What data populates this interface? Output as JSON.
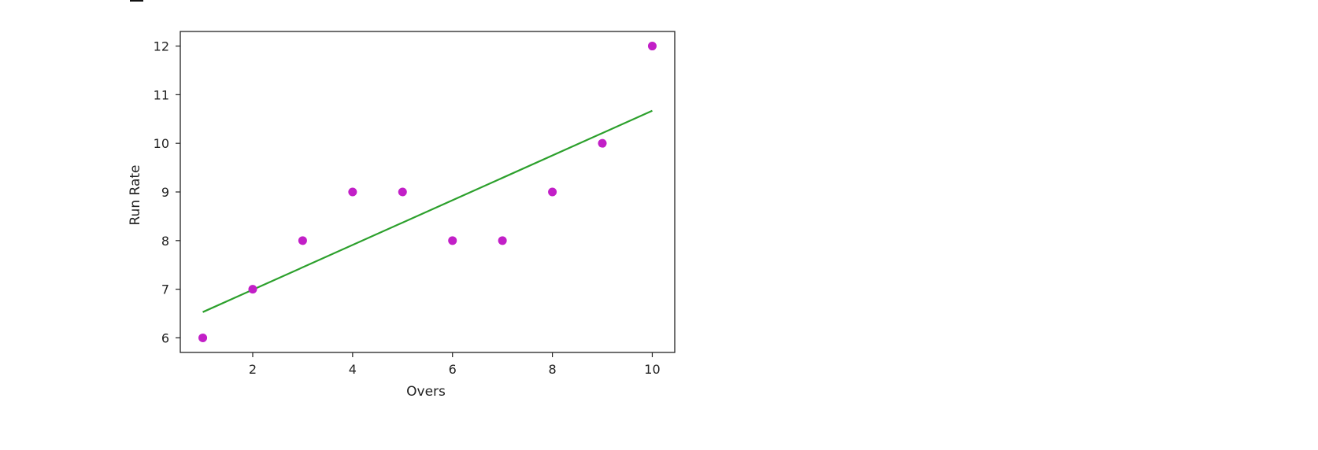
{
  "chart_data": {
    "type": "scatter",
    "title": "",
    "xlabel": "Overs",
    "ylabel": "Run Rate",
    "xlim": [
      0.55,
      10.45
    ],
    "ylim": [
      5.7,
      12.3
    ],
    "x_ticks": [
      2,
      4,
      6,
      8,
      10
    ],
    "y_ticks": [
      6,
      7,
      8,
      9,
      10,
      11,
      12
    ],
    "grid": false,
    "legend": "none",
    "series": [
      {
        "kind": "points",
        "color": "#c21fc7",
        "x": [
          1,
          2,
          3,
          4,
          5,
          6,
          7,
          8,
          9,
          10
        ],
        "y": [
          6,
          7,
          8,
          9,
          9,
          8,
          8,
          9,
          10,
          12
        ]
      },
      {
        "kind": "line",
        "color": "#2ca02c",
        "x": [
          1,
          10
        ],
        "y": [
          6.53,
          10.67
        ]
      }
    ]
  }
}
